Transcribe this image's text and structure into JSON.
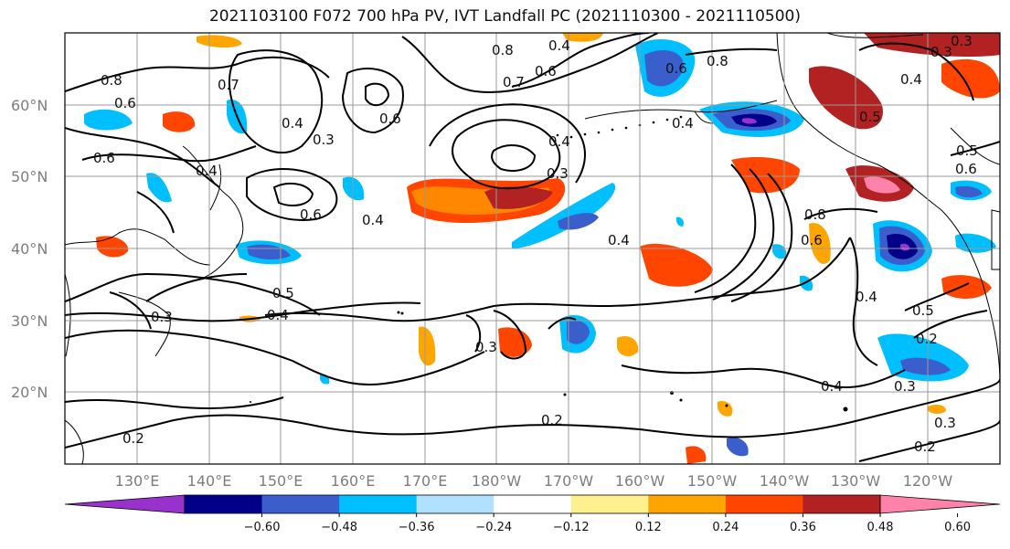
{
  "title": "2021103100 F072 700 hPa PV, IVT Landfall PC (2021110300 - 2021110500)",
  "lat_labels": [
    "60°N",
    "50°N",
    "40°N",
    "30°N",
    "20°N"
  ],
  "lon_labels": [
    "130°E",
    "140°E",
    "150°E",
    "160°E",
    "170°E",
    "180°W",
    "170°W",
    "160°W",
    "150°W",
    "140°W",
    "130°W",
    "120°W"
  ],
  "colorbar": {
    "tick_labels": [
      "−0.60",
      "−0.48",
      "−0.36",
      "−0.24",
      "−0.12",
      "0.12",
      "0.24",
      "0.36",
      "0.48",
      "0.60"
    ],
    "colors": [
      "#9932cc",
      "#00008b",
      "#3a5fcd",
      "#00bfff",
      "#b0e2ff",
      "#ffffff",
      "#fff08f",
      "#ffa500",
      "#ff4500",
      "#b22222",
      "#ff82ab"
    ]
  },
  "contour_labels": [
    "0.8",
    "0.6",
    "0.7",
    "0.4",
    "0.3",
    "0.6",
    "0.4",
    "0.6",
    "0.4",
    "0.5",
    "0.3",
    "0.4",
    "0.2",
    "0.3",
    "0.3",
    "0.2",
    "0.8",
    "0.6",
    "0.4",
    "0.8",
    "0.7",
    "0.6",
    "0.4",
    "0.3",
    "0.5",
    "0.4",
    "0.3",
    "0.4",
    "0.5",
    "0.6",
    "0.4",
    "0.5",
    "0.2",
    "0.3",
    "0.4",
    "0.3",
    "0.2",
    "0.4",
    "0.8",
    "0.6",
    "0.6"
  ]
}
